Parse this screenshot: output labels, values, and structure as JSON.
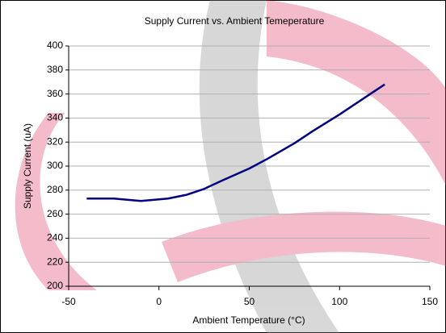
{
  "chart_data": {
    "type": "line",
    "title": "Supply Current vs. Ambient Temeperature",
    "x_label": "Ambient Temperature (°C)",
    "y_label": "Supply Current (uA)",
    "x": [
      -40,
      -25,
      -10,
      5,
      15,
      25,
      35,
      50,
      60,
      75,
      85,
      100,
      115,
      125
    ],
    "series": [
      {
        "name": "Supply Current",
        "color": "#000080",
        "values": [
          273,
          273,
          271,
          273,
          276,
          281,
          288,
          298,
          306,
          319,
          329,
          343,
          358,
          368
        ]
      }
    ],
    "xlim": [
      -50,
      150
    ],
    "xticks": [
      -50,
      0,
      50,
      100,
      150
    ],
    "ylim": [
      200,
      400
    ],
    "yticks": [
      200,
      220,
      240,
      260,
      280,
      300,
      320,
      340,
      360,
      380,
      400
    ],
    "grid": true
  }
}
